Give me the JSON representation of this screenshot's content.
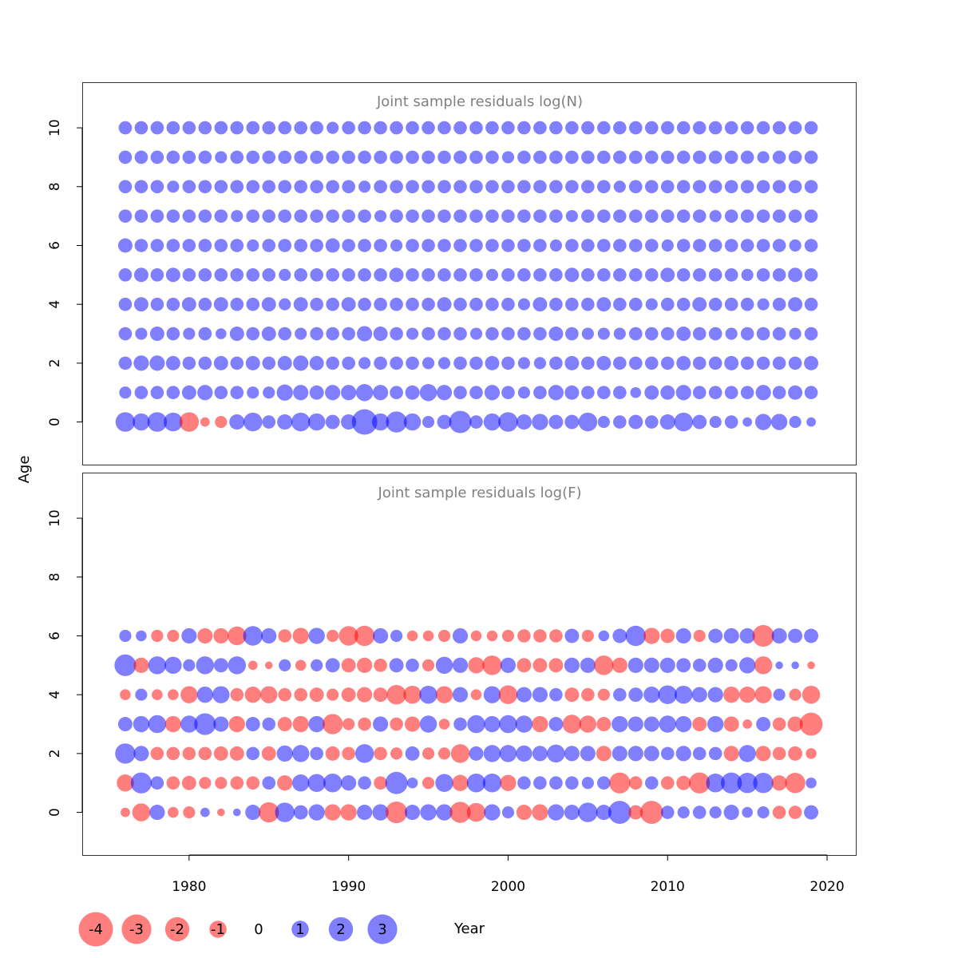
{
  "chart_data": {
    "type": "scatter",
    "subtype": "bubble",
    "xlabel": "Year",
    "ylabel": "Age",
    "xlim": [
      1973.3,
      2021.8
    ],
    "x_ticks": [
      1980,
      1990,
      2000,
      2010,
      2020
    ],
    "y_ticks": [
      0,
      2,
      4,
      6,
      8,
      10
    ],
    "grid": false,
    "colors": {
      "negative": "#ff0000",
      "positive": "#0000ff",
      "opacity": 0.5
    },
    "legend": {
      "placement": "bottom-left",
      "labels": [
        "-4",
        "-3",
        "-2",
        "-1",
        "0",
        "1",
        "2",
        "3"
      ],
      "values": [
        -4,
        -3,
        -2,
        -1,
        0,
        1,
        2,
        3
      ]
    },
    "panels": [
      {
        "title": "Joint sample residuals log(N)",
        "ylim": [
          -1.45,
          11.55
        ],
        "years": [
          1976,
          2019
        ],
        "ages": [
          0,
          10
        ],
        "residuals": [
          [
            1.3,
            1.0,
            1.3,
            1.2,
            -1.3,
            -0.3,
            -0.5,
            0.8,
            1.2,
            0.6,
            0.8,
            1.2,
            1.0,
            0.7,
            0.8,
            2.2,
            1.0,
            1.5,
            1.0,
            0.5,
            0.7,
            1.7,
            0.6,
            1.0,
            1.3,
            0.8,
            0.9,
            0.7,
            0.7,
            1.2,
            0.5,
            0.6,
            0.7,
            0.6,
            0.8,
            1.2,
            0.7,
            0.5,
            0.6,
            0.3,
            0.9,
            0.9,
            0.5,
            0.3
          ],
          [
            0.5,
            0.6,
            0.6,
            0.6,
            0.7,
            0.8,
            0.6,
            0.6,
            0.5,
            0.5,
            0.9,
            0.8,
            0.7,
            0.8,
            0.8,
            1.0,
            0.8,
            0.6,
            0.7,
            1.0,
            0.8,
            0.6,
            0.6,
            0.8,
            0.6,
            0.5,
            0.6,
            0.8,
            0.7,
            0.6,
            0.6,
            0.6,
            0.4,
            0.7,
            0.7,
            0.8,
            0.6,
            0.6,
            0.6,
            0.6,
            0.8,
            0.6,
            0.7,
            0.6
          ],
          [
            0.6,
            0.8,
            0.8,
            0.7,
            0.6,
            0.6,
            0.7,
            0.6,
            0.7,
            0.6,
            0.7,
            0.8,
            0.7,
            0.6,
            0.6,
            0.5,
            0.6,
            0.6,
            0.6,
            0.5,
            0.5,
            0.6,
            0.6,
            0.7,
            0.6,
            0.5,
            0.5,
            0.6,
            0.7,
            0.6,
            0.7,
            0.6,
            0.6,
            0.6,
            0.6,
            0.7,
            0.6,
            0.6,
            0.7,
            0.6,
            0.6,
            0.6,
            0.6,
            0.7
          ],
          [
            0.6,
            0.5,
            0.7,
            0.6,
            0.5,
            0.6,
            0.4,
            0.7,
            0.6,
            0.7,
            0.6,
            0.5,
            0.6,
            0.6,
            0.6,
            0.8,
            0.7,
            0.6,
            0.5,
            0.6,
            0.6,
            0.6,
            0.5,
            0.6,
            0.6,
            0.6,
            0.6,
            0.7,
            0.6,
            0.5,
            0.5,
            0.5,
            0.6,
            0.6,
            0.6,
            0.7,
            0.6,
            0.6,
            0.5,
            0.6,
            0.6,
            0.6,
            0.5,
            0.6
          ],
          [
            0.6,
            0.7,
            0.6,
            0.6,
            0.7,
            0.6,
            0.7,
            0.6,
            0.6,
            0.7,
            0.5,
            0.7,
            0.6,
            0.6,
            0.7,
            0.6,
            0.6,
            0.6,
            0.6,
            0.6,
            0.7,
            0.6,
            0.6,
            0.6,
            0.6,
            0.5,
            0.7,
            0.6,
            0.6,
            0.6,
            0.7,
            0.6,
            0.6,
            0.5,
            0.6,
            0.6,
            0.7,
            0.6,
            0.6,
            0.6,
            0.5,
            0.6,
            0.7,
            0.6
          ],
          [
            0.6,
            0.7,
            0.6,
            0.7,
            0.6,
            0.6,
            0.6,
            0.6,
            0.6,
            0.6,
            0.5,
            0.6,
            0.6,
            0.6,
            0.6,
            0.6,
            0.6,
            0.7,
            0.6,
            0.6,
            0.6,
            0.6,
            0.6,
            0.5,
            0.6,
            0.6,
            0.6,
            0.6,
            0.7,
            0.6,
            0.6,
            0.6,
            0.6,
            0.6,
            0.7,
            0.6,
            0.6,
            0.6,
            0.6,
            0.5,
            0.6,
            0.6,
            0.7,
            0.6
          ],
          [
            0.7,
            0.6,
            0.6,
            0.6,
            0.6,
            0.6,
            0.6,
            0.6,
            0.5,
            0.6,
            0.6,
            0.6,
            0.6,
            0.7,
            0.6,
            0.6,
            0.6,
            0.5,
            0.6,
            0.6,
            0.6,
            0.6,
            0.6,
            0.6,
            0.6,
            0.6,
            0.6,
            0.5,
            0.6,
            0.6,
            0.6,
            0.6,
            0.6,
            0.6,
            0.5,
            0.6,
            0.6,
            0.6,
            0.6,
            0.6,
            0.6,
            0.6,
            0.5,
            0.6
          ],
          [
            0.6,
            0.6,
            0.6,
            0.6,
            0.6,
            0.6,
            0.6,
            0.5,
            0.6,
            0.6,
            0.6,
            0.6,
            0.6,
            0.6,
            0.6,
            0.6,
            0.5,
            0.6,
            0.6,
            0.6,
            0.6,
            0.6,
            0.6,
            0.6,
            0.6,
            0.6,
            0.6,
            0.6,
            0.5,
            0.6,
            0.6,
            0.6,
            0.6,
            0.6,
            0.6,
            0.6,
            0.6,
            0.5,
            0.6,
            0.6,
            0.6,
            0.6,
            0.6,
            0.6
          ],
          [
            0.6,
            0.6,
            0.6,
            0.5,
            0.6,
            0.6,
            0.6,
            0.6,
            0.6,
            0.6,
            0.6,
            0.6,
            0.6,
            0.6,
            0.6,
            0.5,
            0.6,
            0.6,
            0.6,
            0.6,
            0.6,
            0.6,
            0.6,
            0.6,
            0.6,
            0.6,
            0.6,
            0.6,
            0.6,
            0.6,
            0.6,
            0.5,
            0.6,
            0.6,
            0.6,
            0.6,
            0.6,
            0.6,
            0.6,
            0.6,
            0.6,
            0.6,
            0.6,
            0.6
          ],
          [
            0.6,
            0.6,
            0.6,
            0.6,
            0.6,
            0.6,
            0.5,
            0.6,
            0.6,
            0.6,
            0.6,
            0.6,
            0.6,
            0.6,
            0.6,
            0.6,
            0.6,
            0.6,
            0.6,
            0.6,
            0.6,
            0.6,
            0.6,
            0.6,
            0.5,
            0.6,
            0.6,
            0.6,
            0.6,
            0.6,
            0.6,
            0.6,
            0.6,
            0.6,
            0.6,
            0.6,
            0.6,
            0.6,
            0.6,
            0.6,
            0.5,
            0.6,
            0.6,
            0.6
          ],
          [
            0.6,
            0.6,
            0.6,
            0.6,
            0.6,
            0.6,
            0.6,
            0.6,
            0.6,
            0.6,
            0.6,
            0.6,
            0.6,
            0.5,
            0.6,
            0.6,
            0.6,
            0.6,
            0.6,
            0.6,
            0.6,
            0.6,
            0.6,
            0.6,
            0.6,
            0.6,
            0.6,
            0.6,
            0.6,
            0.6,
            0.6,
            0.6,
            0.6,
            0.6,
            0.6,
            0.6,
            0.6,
            0.6,
            0.6,
            0.6,
            0.6,
            0.6,
            0.6,
            0.6
          ]
        ]
      },
      {
        "title": "Joint sample residuals log(F)",
        "ylim": [
          -1.45,
          11.55
        ],
        "years": [
          1976,
          2019
        ],
        "ages": [
          0,
          6
        ],
        "residuals": [
          [
            -0.3,
            -1.1,
            0.8,
            -0.4,
            -0.5,
            0.3,
            -0.2,
            0.2,
            0.8,
            -1.4,
            1.3,
            0.7,
            0.9,
            -0.9,
            -0.9,
            0.8,
            0.9,
            -1.6,
            0.8,
            0.9,
            0.9,
            -1.5,
            -1.2,
            0.9,
            0.5,
            -0.8,
            -0.9,
            0.9,
            0.8,
            1.3,
            0.8,
            1.8,
            -0.7,
            -1.8,
            0.6,
            0.5,
            0.6,
            0.5,
            0.8,
            0.4,
            0.5,
            -0.6,
            -0.6,
            0.7
          ],
          [
            -1.0,
            1.5,
            0.6,
            -0.6,
            -0.7,
            -0.5,
            -0.5,
            -0.6,
            -0.6,
            0.6,
            -0.8,
            1.0,
            1.1,
            1.2,
            0.8,
            0.6,
            -0.6,
            1.7,
            0.4,
            -0.5,
            1.1,
            -0.9,
            1.2,
            1.2,
            -0.9,
            0.6,
            0.6,
            0.6,
            0.6,
            0.5,
            0.6,
            -1.5,
            -0.6,
            0.6,
            -0.6,
            -0.7,
            -1.5,
            1.2,
            1.5,
            1.4,
            1.4,
            -0.8,
            -1.4,
            0.4
          ],
          [
            1.4,
            0.8,
            -0.6,
            -0.6,
            -0.6,
            -0.6,
            -0.7,
            -0.7,
            0.6,
            -0.7,
            0.9,
            1.0,
            0.6,
            -0.7,
            -0.6,
            1.2,
            -0.6,
            -0.5,
            0.7,
            -0.5,
            -0.5,
            -1.2,
            0.7,
            1.0,
            1.0,
            0.9,
            0.8,
            1.1,
            0.8,
            0.8,
            -0.8,
            0.8,
            0.8,
            0.8,
            0.6,
            0.8,
            0.6,
            0.6,
            -0.8,
            1.0,
            -0.8,
            -0.6,
            -0.7,
            -0.4
          ],
          [
            0.7,
            0.9,
            1.1,
            -0.9,
            1.0,
            1.6,
            0.8,
            -0.9,
            0.7,
            0.6,
            -0.7,
            -0.9,
            0.9,
            -1.4,
            -0.5,
            -0.6,
            0.8,
            -0.6,
            -0.8,
            1.0,
            -0.4,
            0.6,
            1.1,
            0.9,
            1.1,
            1.0,
            -0.9,
            0.7,
            -1.2,
            -1.0,
            -0.7,
            0.9,
            0.8,
            0.8,
            1.0,
            0.9,
            -0.7,
            0.9,
            -0.8,
            -0.3,
            0.7,
            -0.6,
            -0.8,
            -1.8
          ],
          [
            -0.4,
            0.5,
            -0.4,
            -0.4,
            -1.0,
            0.9,
            1.0,
            -0.6,
            -0.9,
            -1.0,
            -0.6,
            -0.6,
            -0.7,
            -0.5,
            -0.7,
            -0.8,
            -0.7,
            -1.3,
            -1.1,
            1.1,
            -1.0,
            0.8,
            -0.4,
            1.0,
            -1.2,
            0.8,
            0.8,
            0.6,
            -0.7,
            -0.6,
            -0.5,
            0.6,
            0.7,
            0.9,
            1.2,
            1.1,
            0.8,
            0.8,
            -0.9,
            -0.9,
            -1.0,
            0.5,
            -0.5,
            -1.1
          ],
          [
            1.6,
            -0.8,
            1.1,
            1.0,
            0.5,
            1.1,
            0.7,
            1.1,
            -0.3,
            -0.2,
            0.5,
            -0.4,
            0.5,
            0.7,
            -0.7,
            -0.8,
            -0.6,
            0.7,
            0.6,
            -0.5,
            1.0,
            0.8,
            -0.9,
            -1.3,
            0.8,
            -0.7,
            -0.7,
            -0.7,
            0.8,
            0.8,
            -1.3,
            -0.8,
            0.8,
            0.8,
            0.8,
            0.7,
            0.6,
            0.8,
            0.5,
            0.9,
            -1.1,
            0.2,
            0.2,
            -0.2
          ],
          [
            0.5,
            0.4,
            -0.5,
            -0.5,
            0.8,
            -0.8,
            -0.8,
            -1.2,
            1.3,
            0.8,
            -0.6,
            -0.9,
            0.9,
            -0.5,
            -1.3,
            -1.4,
            0.8,
            0.5,
            -0.4,
            -0.4,
            -0.5,
            0.8,
            -0.4,
            -0.4,
            -0.5,
            -0.6,
            -0.6,
            -0.6,
            0.7,
            -0.5,
            0.4,
            0.7,
            1.4,
            -0.9,
            -0.7,
            0.8,
            -0.5,
            0.7,
            0.8,
            0.8,
            -1.6,
            0.8,
            0.7,
            0.7
          ]
        ]
      }
    ]
  }
}
